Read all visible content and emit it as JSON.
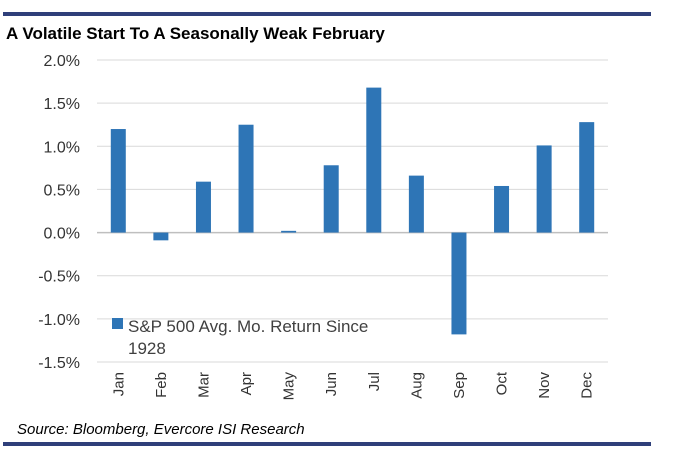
{
  "colors": {
    "bar": "#2e75b6",
    "rule": "#2f3f7a",
    "grid": "#d9d9d9",
    "zero": "#bfbfbf"
  },
  "source_text": "Source: Bloomberg, Evercore ISI Research",
  "chart_data": {
    "type": "bar",
    "title": "A Volatile Start To A Seasonally Weak February",
    "categories": [
      "Jan",
      "Feb",
      "Mar",
      "Apr",
      "May",
      "Jun",
      "Jul",
      "Aug",
      "Sep",
      "Oct",
      "Nov",
      "Dec"
    ],
    "series": [
      {
        "name": "S&P 500 Avg. Mo. Return Since 1928",
        "name_lines": [
          "S&P 500 Avg. Mo. Return Since",
          "1928"
        ],
        "values": [
          1.2,
          -0.09,
          0.59,
          1.25,
          0.02,
          0.78,
          1.68,
          0.66,
          -1.18,
          0.54,
          1.01,
          1.28
        ]
      }
    ],
    "ylim": [
      -1.5,
      2.0
    ],
    "yticks": [
      2.0,
      1.5,
      1.0,
      0.5,
      0.0,
      -0.5,
      -1.0,
      -1.5
    ],
    "ytick_labels": [
      "2.0%",
      "1.5%",
      "1.0%",
      "0.5%",
      "0.0%",
      "-0.5%",
      "-1.0%",
      "-1.5%"
    ],
    "grid": true,
    "legend_position": "bottom-left",
    "xlabel": "",
    "ylabel": ""
  }
}
